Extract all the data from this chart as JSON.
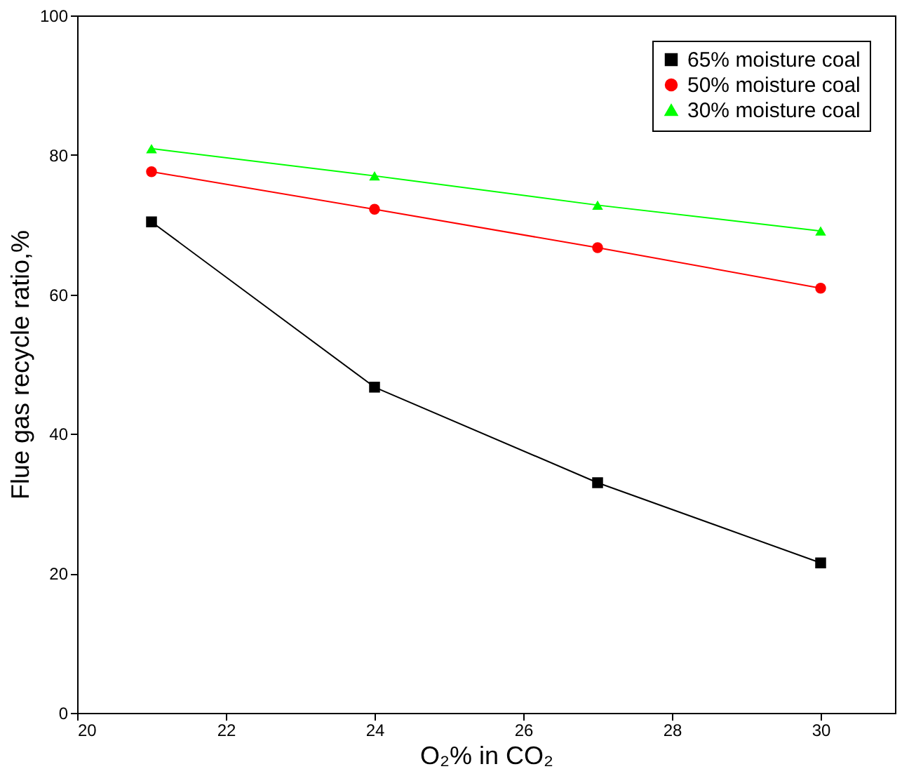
{
  "chart_data": {
    "type": "line",
    "xlabel": "O₂% in CO₂",
    "ylabel": "Flue gas recycle ratio,%",
    "x": [
      21,
      24,
      27,
      30
    ],
    "series": [
      {
        "name": "65% moisture coal",
        "color": "#000000",
        "marker": "square",
        "values": [
          70.4,
          46.7,
          33.0,
          21.5
        ]
      },
      {
        "name": "50% moisture coal",
        "color": "#ff0000",
        "marker": "circle",
        "values": [
          77.6,
          72.2,
          66.7,
          60.9
        ]
      },
      {
        "name": "30% moisture coal",
        "color": "#00ff00",
        "marker": "triangle",
        "values": [
          80.9,
          77.0,
          72.8,
          69.1
        ]
      }
    ],
    "xlim": [
      20,
      31
    ],
    "xticks": [
      20,
      22,
      24,
      26,
      28,
      30
    ],
    "ylim": [
      0,
      100
    ],
    "yticks": [
      0,
      20,
      40,
      60,
      80,
      100
    ],
    "grid": false,
    "legend": "top right",
    "line_style": "solid"
  }
}
